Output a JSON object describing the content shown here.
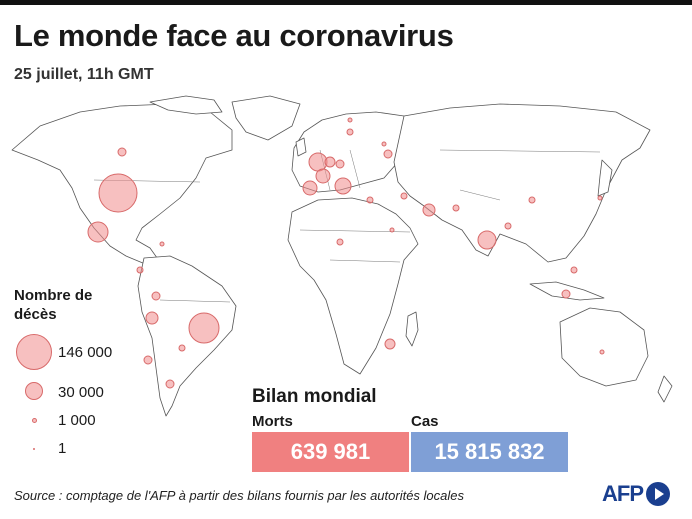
{
  "header": {
    "title": "Le monde face au coronavirus",
    "subtitle": "25 juillet, 11h GMT"
  },
  "legend": {
    "title": "Nombre de décès",
    "items": [
      {
        "label": "146 000",
        "value": 146000
      },
      {
        "label": "30 000",
        "value": 30000
      },
      {
        "label": "1 000",
        "value": 1000
      },
      {
        "label": "1",
        "value": 1
      }
    ]
  },
  "bilan": {
    "title": "Bilan mondial",
    "deaths_label": "Morts",
    "deaths_value": "639 981",
    "cases_label": "Cas",
    "cases_value": "15 815 832"
  },
  "source": "Source : comptage de l'AFP à partir des bilans fournis par les autorités locales",
  "logo": "AFP",
  "colors": {
    "bubble_fill": "#f08c8c",
    "bubble_stroke": "#d86a6a",
    "deaths_box": "#f08080",
    "cases_box": "#7f9fd6",
    "land": "#ffffff",
    "border": "#555555",
    "logo": "#1a3f8f"
  }
}
